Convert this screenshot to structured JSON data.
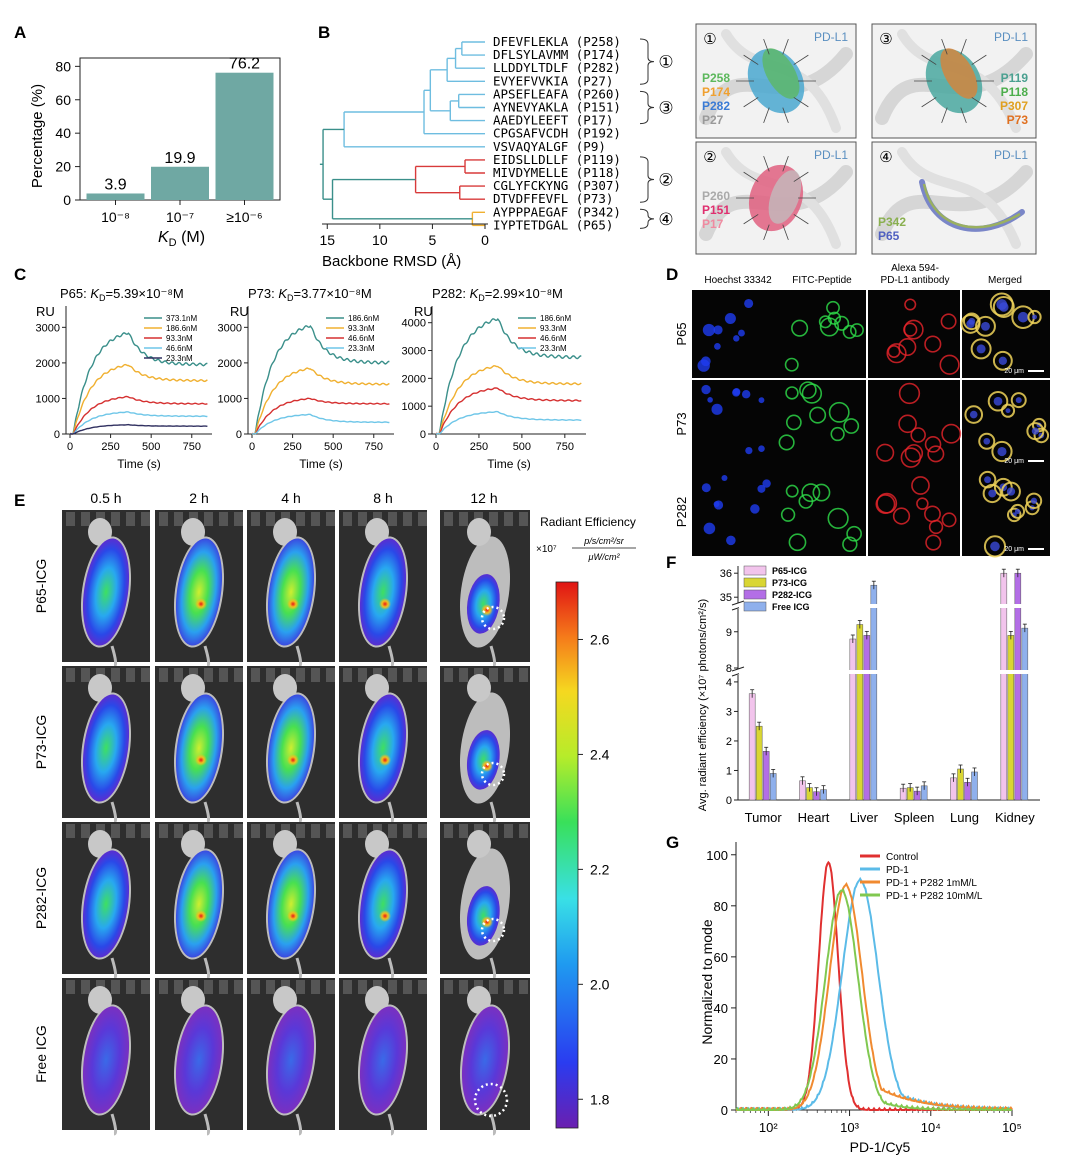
{
  "panels": {
    "A": "A",
    "B": "B",
    "C": "C",
    "D": "D",
    "E": "E",
    "F": "F",
    "G": "G"
  },
  "panelA": {
    "ylabel": "Percentage (%)",
    "xlabel_main": "K",
    "xlabel_sub": "D",
    "xlabel_unit": " (M)",
    "yticks": [
      "0",
      "20",
      "40",
      "60",
      "80"
    ],
    "categories": [
      "10⁻⁸",
      "10⁻⁷",
      "≥10⁻⁶"
    ],
    "value_labels": [
      "3.9",
      "19.9",
      "76.2"
    ]
  },
  "panelB": {
    "xlabel": "Backbone RMSD (Å)",
    "xticks": [
      "15",
      "10",
      "5",
      "0"
    ],
    "sequences": [
      {
        "seq": "DFEVFLEKLA",
        "id": "(P258)"
      },
      {
        "seq": "DFLSYLAVMM",
        "id": "(P174)"
      },
      {
        "seq": "LLDDYLTDLF",
        "id": "(P282)"
      },
      {
        "seq": "EVYEFVVKIA",
        "id": "(P27)"
      },
      {
        "seq": "APSEFLEAFA",
        "id": "(P260)"
      },
      {
        "seq": "AYNEVYAKLA",
        "id": "(P151)"
      },
      {
        "seq": "AAEDYLEEFT",
        "id": "(P17)"
      },
      {
        "seq": "CPGSAFVCDH",
        "id": "(P192)"
      },
      {
        "seq": "VSVAQYALGF",
        "id": "(P9)"
      },
      {
        "seq": "EIDSLLDLLF",
        "id": "(P119)"
      },
      {
        "seq": "MIVDYMELLE",
        "id": "(P118)"
      },
      {
        "seq": "CGLYFCKYNG",
        "id": "(P307)"
      },
      {
        "seq": "DTVDFFEVFL",
        "id": "(P73)"
      },
      {
        "seq": "AYPPPAEGAF",
        "id": "(P342)"
      },
      {
        "seq": "IYPTETDGAL",
        "id": "(P65)"
      }
    ],
    "clusters": [
      "①",
      "③",
      "②",
      "④"
    ],
    "structure_boxes": [
      {
        "num": "①",
        "target": "PD-L1",
        "labels": [
          {
            "t": "P258",
            "c": "#5cb85c"
          },
          {
            "t": "P174",
            "c": "#f0a030"
          },
          {
            "t": "P282",
            "c": "#3a7bd5"
          },
          {
            "t": "P27",
            "c": "#999999"
          }
        ]
      },
      {
        "num": "③",
        "target": "PD-L1",
        "labels": [
          {
            "t": "P119",
            "c": "#4aa090"
          },
          {
            "t": "P118",
            "c": "#4cae4c"
          },
          {
            "t": "P307",
            "c": "#e0a020"
          },
          {
            "t": "P73",
            "c": "#e07020"
          }
        ]
      },
      {
        "num": "②",
        "target": "PD-L1",
        "labels": [
          {
            "t": "P260",
            "c": "#aaaaaa"
          },
          {
            "t": "P151",
            "c": "#e03070"
          },
          {
            "t": "P17",
            "c": "#f08aa0"
          }
        ]
      },
      {
        "num": "④",
        "target": "PD-L1",
        "labels": [
          {
            "t": "P342",
            "c": "#8ab050"
          },
          {
            "t": "P65",
            "c": "#5060c0"
          }
        ]
      }
    ]
  },
  "panelC": {
    "charts": [
      {
        "prefix": "P65: ",
        "kd": "K",
        "kd_sub": "D",
        "value": "=5.39×10⁻⁸M",
        "legend": [
          "373.1nM",
          "186.6nM",
          "93.3nM",
          "46.6nM",
          "23.3nM"
        ],
        "yticks": [
          "0",
          "1000",
          "2000",
          "3000"
        ]
      },
      {
        "prefix": "P73: ",
        "kd": "K",
        "kd_sub": "D",
        "value": "=3.77×10⁻⁸M",
        "legend": [
          "186.6nM",
          "93.3nM",
          "46.6nM",
          "23.3nM"
        ],
        "yticks": [
          "0",
          "1000",
          "2000",
          "3000"
        ]
      },
      {
        "prefix": "P282: ",
        "kd": "K",
        "kd_sub": "D",
        "value": "=2.99×10⁻⁸M",
        "legend": [
          "186.6nM",
          "93.3nM",
          "46.6nM",
          "23.3nM"
        ],
        "yticks": [
          "0",
          "1000",
          "2000",
          "3000",
          "4000"
        ]
      }
    ],
    "ylabel": "RU",
    "xlabel": "Time (s)",
    "xticks": [
      "0",
      "250",
      "500",
      "750"
    ]
  },
  "panelD": {
    "columns": [
      "Hoechst 33342",
      "FITC-Peptide",
      "Alexa 594-\nPD-L1 antibody",
      "Merged"
    ],
    "col3_line1": "Alexa 594-",
    "col3_line2": "PD-L1 antibody",
    "rows": [
      "P65",
      "P73",
      "P282"
    ],
    "scalebar": "20 μm"
  },
  "panelE": {
    "times": [
      "0.5 h",
      "2 h",
      "4 h",
      "8 h",
      "12 h"
    ],
    "rows": [
      "P65-ICG",
      "P73-ICG",
      "P282-ICG",
      "Free ICG"
    ],
    "colorbar_title": "Radiant Efficiency",
    "colorbar_scale": "×10⁷",
    "colorbar_unit_num": "p/s/cm²/sr",
    "colorbar_unit_den": "μW/cm²",
    "colorbar_ticks": [
      "2.6",
      "2.4",
      "2.2",
      "2.0",
      "1.8"
    ]
  },
  "panelF": {
    "ylabel": "Avg. radiant efficiency (×10⁷ photons/cm²/s)",
    "legend": [
      "P65-ICG",
      "P73-ICG",
      "P282-ICG",
      "Free ICG"
    ],
    "colors": [
      "#f2c4ec",
      "#d9d633",
      "#b36ee6",
      "#8fb0ec"
    ],
    "categories": [
      "Tumor",
      "Heart",
      "Liver",
      "Spleen",
      "Lung",
      "Kidney"
    ],
    "yticks_upper": [
      "35",
      "36"
    ],
    "yticks_mid": [
      "8",
      "9"
    ],
    "yticks_lower": [
      "0",
      "1",
      "2",
      "3",
      "4"
    ]
  },
  "chart_data": [
    {
      "type": "bar",
      "categories": [
        "10⁻⁸",
        "10⁻⁷",
        "≥10⁻⁶"
      ],
      "values": [
        3.9,
        19.9,
        76.2
      ],
      "ylabel": "Percentage (%)",
      "xlabel": "KD (M)",
      "ylim": [
        0,
        85
      ]
    },
    {
      "type": "line",
      "title": "P65: KD=5.39×10⁻⁸M",
      "xlim": [
        0,
        850
      ],
      "ylim": [
        0,
        3600
      ],
      "series": [
        {
          "name": "373.1nM",
          "color": "#3a8f8a",
          "peak": 2850,
          "end": 1950
        },
        {
          "name": "186.6nM",
          "color": "#f0b030",
          "peak": 1950,
          "end": 1500
        },
        {
          "name": "93.3nM",
          "color": "#d53030",
          "peak": 1050,
          "end": 850
        },
        {
          "name": "46.6nM",
          "color": "#6ec6e8",
          "peak": 620,
          "end": 500
        },
        {
          "name": "23.3nM",
          "color": "#303060",
          "peak": 260,
          "end": 220
        }
      ]
    },
    {
      "type": "line",
      "title": "P73: KD=3.77×10⁻⁸M",
      "xlim": [
        0,
        850
      ],
      "ylim": [
        0,
        3600
      ],
      "series": [
        {
          "name": "186.6nM",
          "color": "#3a8f8a",
          "peak": 3050,
          "end": 2000
        },
        {
          "name": "93.3nM",
          "color": "#f0b030",
          "peak": 1850,
          "end": 1400
        },
        {
          "name": "46.6nM",
          "color": "#d53030",
          "peak": 1000,
          "end": 850
        },
        {
          "name": "23.3nM",
          "color": "#6ec6e8",
          "peak": 550,
          "end": 330
        }
      ]
    },
    {
      "type": "line",
      "title": "P282: KD=2.99×10⁻⁸M",
      "xlim": [
        0,
        850
      ],
      "ylim": [
        0,
        4600
      ],
      "series": [
        {
          "name": "186.6nM",
          "color": "#3a8f8a",
          "peak": 4150,
          "end": 2750
        },
        {
          "name": "93.3nM",
          "color": "#f0b030",
          "peak": 2450,
          "end": 1800
        },
        {
          "name": "46.6nM",
          "color": "#d53030",
          "peak": 1650,
          "end": 1200
        },
        {
          "name": "23.3nM",
          "color": "#6ec6e8",
          "peak": 800,
          "end": 500
        }
      ]
    },
    {
      "type": "bar",
      "categories": [
        "Tumor",
        "Heart",
        "Liver",
        "Spleen",
        "Lung",
        "Kidney"
      ],
      "series": [
        {
          "name": "P65-ICG",
          "values": [
            3.6,
            0.65,
            8.8,
            0.4,
            0.75,
            36
          ]
        },
        {
          "name": "P73-ICG",
          "values": [
            2.5,
            0.42,
            9.2,
            0.42,
            1.05,
            8.9
          ]
        },
        {
          "name": "P282-ICG",
          "values": [
            1.65,
            0.28,
            8.9,
            0.3,
            0.6,
            36
          ]
        },
        {
          "name": "Free ICG",
          "values": [
            0.9,
            0.35,
            35.5,
            0.48,
            0.95,
            9.1
          ]
        }
      ],
      "ylabel": "Avg. radiant efficiency (×10⁷ photons/cm²/s)"
    },
    {
      "type": "line",
      "xlabel": "PD-1/Cy5",
      "ylabel": "Normalized to mode",
      "xscale": "log",
      "xlim": [
        40,
        100000
      ],
      "ylim": [
        0,
        105
      ],
      "series": [
        {
          "name": "Control",
          "color": "#e03030",
          "peak_x": 550,
          "peak_y": 97
        },
        {
          "name": "PD-1",
          "color": "#5bbbe8",
          "peak_x": 1350,
          "peak_y": 90
        },
        {
          "name": "PD-1 + P282 1mM/L",
          "color": "#f08a30",
          "peak_x": 900,
          "peak_y": 88
        },
        {
          "name": "PD-1 + P282 10mM/L",
          "color": "#80c850",
          "peak_x": 800,
          "peak_y": 86
        }
      ]
    }
  ],
  "panelG": {
    "ylabel": "Normalized to mode",
    "xlabel": "PD-1/Cy5",
    "yticks": [
      "0",
      "20",
      "40",
      "60",
      "80",
      "100"
    ],
    "xticks": [
      "10²",
      "10³",
      "10⁴",
      "10⁵"
    ],
    "legend": [
      "Control",
      "PD-1",
      "PD-1 + P282 1mM/L",
      "PD-1 + P282 10mM/L"
    ]
  }
}
